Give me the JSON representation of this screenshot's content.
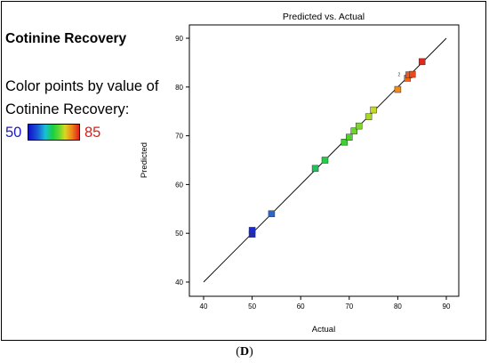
{
  "panel": {
    "heading": "Cotinine Recovery",
    "legend_line1": "Color points by value of",
    "legend_line2": "Cotinine Recovery:",
    "legend_min": "50",
    "legend_max": "85",
    "legend_min_color": "#1a1acc",
    "legend_max_color": "#e0201a",
    "label_open": "(",
    "label_letter": "D",
    "label_close": ")"
  },
  "chart_data": {
    "type": "scatter",
    "title": "Predicted vs. Actual",
    "xlabel": "Actual",
    "ylabel": "Predicted",
    "xlim": [
      40,
      90
    ],
    "ylim": [
      40,
      90
    ],
    "xticks": [
      "40",
      "50",
      "60",
      "70",
      "80",
      "90"
    ],
    "yticks": [
      "40",
      "50",
      "60",
      "70",
      "80",
      "90"
    ],
    "reference_line": [
      [
        40,
        40
      ],
      [
        90,
        90
      ]
    ],
    "points": [
      {
        "x": 50,
        "y": 49.8,
        "color": "#1a2ad0"
      },
      {
        "x": 50,
        "y": 50.6,
        "color": "#1a2ad0"
      },
      {
        "x": 54,
        "y": 54,
        "color": "#2a66cc"
      },
      {
        "x": 63,
        "y": 63.3,
        "color": "#22c05a"
      },
      {
        "x": 65,
        "y": 65,
        "color": "#22cc44"
      },
      {
        "x": 69,
        "y": 68.7,
        "color": "#3cd030"
      },
      {
        "x": 70,
        "y": 69.7,
        "color": "#4cd428"
      },
      {
        "x": 71,
        "y": 71,
        "color": "#66d828"
      },
      {
        "x": 72,
        "y": 72,
        "color": "#7ed828"
      },
      {
        "x": 74,
        "y": 73.9,
        "color": "#a8da24"
      },
      {
        "x": 75,
        "y": 75.3,
        "color": "#c6d822"
      },
      {
        "x": 80,
        "y": 79.5,
        "color": "#f08a1a"
      },
      {
        "x": 82,
        "y": 81.8,
        "color": "#f06418"
      },
      {
        "x": 82.3,
        "y": 82.5,
        "color": "#f05a18"
      },
      {
        "x": 83,
        "y": 82.6,
        "color": "#ec4a18"
      },
      {
        "x": 85,
        "y": 85.2,
        "color": "#e2261a"
      }
    ],
    "annotations": [
      {
        "text": "2",
        "x": 81,
        "y": 82.6
      }
    ],
    "grid": false
  }
}
